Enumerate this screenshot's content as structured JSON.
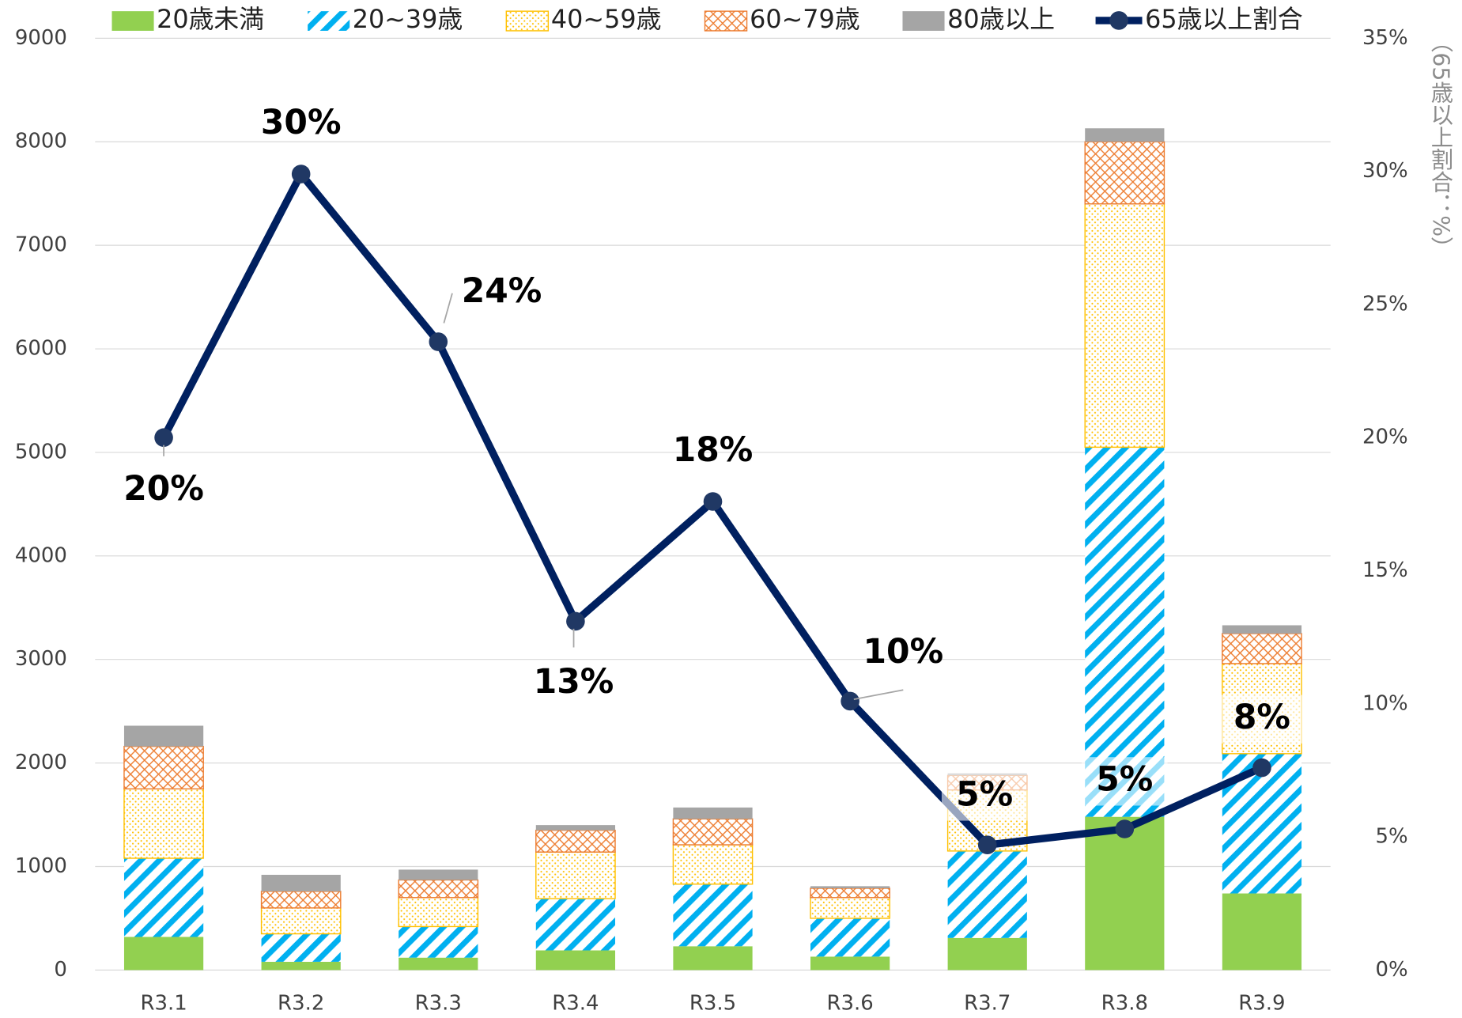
{
  "chart_data": {
    "type": "bar",
    "categories": [
      "R3.1",
      "R3.2",
      "R3.3",
      "R3.4",
      "R3.5",
      "R3.6",
      "R3.7",
      "R3.8",
      "R3.9"
    ],
    "series": [
      {
        "name": "20歳未満",
        "color": "#92d050",
        "values": [
          320,
          80,
          120,
          190,
          230,
          130,
          310,
          1480,
          740
        ]
      },
      {
        "name": "20~39歳",
        "color": "#00b0f0",
        "values": [
          760,
          270,
          300,
          500,
          600,
          370,
          840,
          3570,
          1350
        ]
      },
      {
        "name": "40~59歳",
        "color": "#ffc000",
        "values": [
          670,
          250,
          280,
          450,
          380,
          200,
          590,
          2350,
          870
        ]
      },
      {
        "name": "60~79歳",
        "color": "#ed7d31",
        "values": [
          410,
          160,
          170,
          210,
          250,
          90,
          140,
          600,
          290
        ]
      },
      {
        "name": "80歳以上",
        "color": "#a5a5a5",
        "values": [
          200,
          160,
          100,
          50,
          110,
          20,
          20,
          130,
          80
        ]
      },
      {
        "name": "65歳以上割合",
        "type": "line",
        "axis": "y2",
        "color": "#002060",
        "values": [
          20,
          29.9,
          23.6,
          13.1,
          17.6,
          10.1,
          4.7,
          5.3,
          7.6
        ],
        "value_labels": [
          "20%",
          "30%",
          "24%",
          "13%",
          "18%",
          "10%",
          "5%",
          "5%",
          "8%"
        ]
      }
    ],
    "ylim": [
      0,
      9000
    ],
    "yticks": [
      0,
      1000,
      2000,
      3000,
      4000,
      5000,
      6000,
      7000,
      8000,
      9000
    ],
    "y2lim": [
      0,
      35
    ],
    "y2ticks": [
      {
        "value": 0,
        "label": "0%"
      },
      {
        "value": 5,
        "label": "5%"
      },
      {
        "value": 10,
        "label": "10%"
      },
      {
        "value": 15,
        "label": "15%"
      },
      {
        "value": 20,
        "label": "20%"
      },
      {
        "value": 25,
        "label": "25%"
      },
      {
        "value": 30,
        "label": "30%"
      },
      {
        "value": 35,
        "label": "35%"
      }
    ],
    "y2label": "（65歳以上割合：%）",
    "grid": true,
    "legend": "top",
    "stacked": true
  }
}
